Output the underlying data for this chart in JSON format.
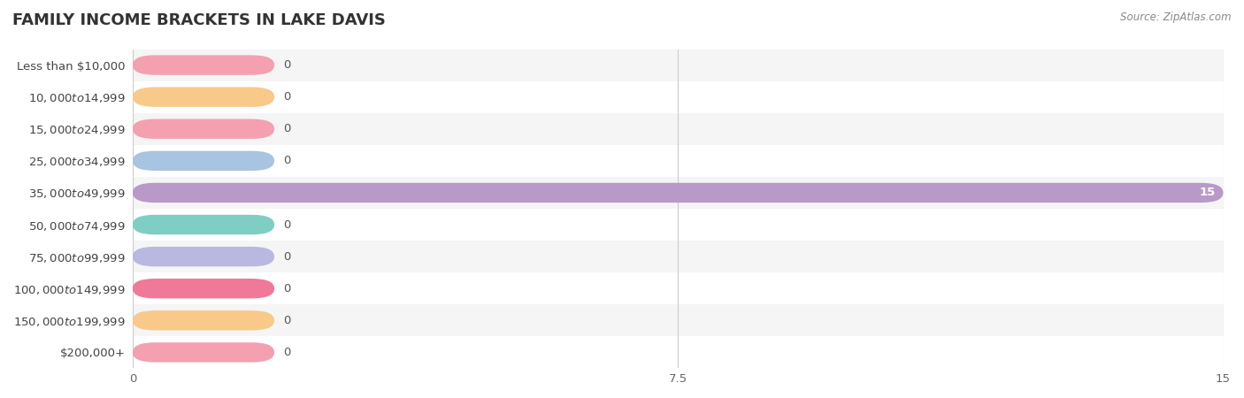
{
  "title": "FAMILY INCOME BRACKETS IN LAKE DAVIS",
  "source": "Source: ZipAtlas.com",
  "categories": [
    "Less than $10,000",
    "$10,000 to $14,999",
    "$15,000 to $24,999",
    "$25,000 to $34,999",
    "$35,000 to $49,999",
    "$50,000 to $74,999",
    "$75,000 to $99,999",
    "$100,000 to $149,999",
    "$150,000 to $199,999",
    "$200,000+"
  ],
  "values": [
    0,
    0,
    0,
    0,
    15,
    0,
    0,
    0,
    0,
    0
  ],
  "bar_colors": [
    "#f4a0b0",
    "#f9c98a",
    "#f4a0b0",
    "#a8c4e0",
    "#b899c8",
    "#7ecec4",
    "#b8b8e0",
    "#f07898",
    "#f9c98a",
    "#f4a0b0"
  ],
  "background_color": "#ffffff",
  "row_bg_colors": [
    "#f5f5f5",
    "#ffffff"
  ],
  "xlim": [
    0,
    15
  ],
  "xticks": [
    0,
    7.5,
    15
  ],
  "title_fontsize": 13,
  "label_fontsize": 9.5,
  "tick_fontsize": 9.5,
  "source_fontsize": 8.5
}
